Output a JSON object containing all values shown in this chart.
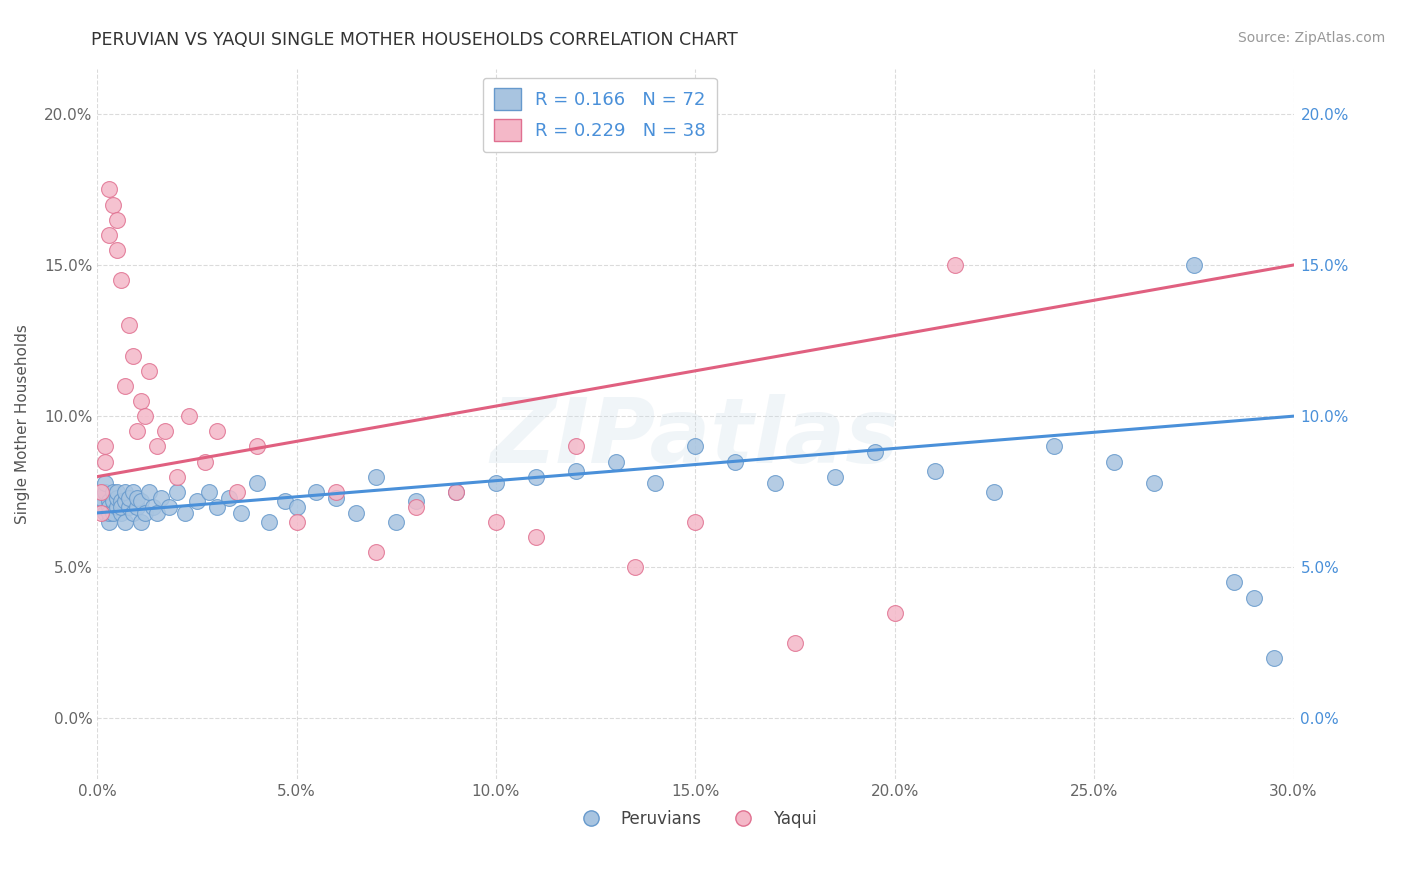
{
  "title": "PERUVIAN VS YAQUI SINGLE MOTHER HOUSEHOLDS CORRELATION CHART",
  "source_text": "Source: ZipAtlas.com",
  "ylabel": "Single Mother Households",
  "xlim": [
    0.0,
    0.3
  ],
  "ylim": [
    -0.02,
    0.215
  ],
  "xticks": [
    0.0,
    0.05,
    0.1,
    0.15,
    0.2,
    0.25,
    0.3
  ],
  "xtick_labels": [
    "0.0%",
    "5.0%",
    "10.0%",
    "15.0%",
    "20.0%",
    "25.0%",
    "30.0%"
  ],
  "yticks": [
    0.0,
    0.05,
    0.1,
    0.15,
    0.2
  ],
  "ytick_labels": [
    "0.0%",
    "5.0%",
    "10.0%",
    "15.0%",
    "20.0%"
  ],
  "peruvian_color": "#a8c4e0",
  "peruvian_edge": "#6699cc",
  "yaqui_color": "#f4b8c8",
  "yaqui_edge": "#e07090",
  "line_peruvian": "#4a90d9",
  "line_yaqui": "#e06080",
  "R_peruvian": 0.166,
  "N_peruvian": 72,
  "R_yaqui": 0.229,
  "N_yaqui": 38,
  "legend_label_peruvian": "Peruvians",
  "legend_label_yaqui": "Yaqui",
  "watermark": "ZIPatlas",
  "background_color": "#ffffff",
  "grid_color": "#cccccc",
  "peruvian_x": [
    0.001,
    0.001,
    0.002,
    0.002,
    0.002,
    0.003,
    0.003,
    0.003,
    0.003,
    0.004,
    0.004,
    0.004,
    0.005,
    0.005,
    0.005,
    0.006,
    0.006,
    0.006,
    0.007,
    0.007,
    0.007,
    0.008,
    0.008,
    0.009,
    0.009,
    0.01,
    0.01,
    0.011,
    0.011,
    0.012,
    0.013,
    0.014,
    0.015,
    0.016,
    0.018,
    0.02,
    0.022,
    0.025,
    0.028,
    0.03,
    0.033,
    0.036,
    0.04,
    0.043,
    0.047,
    0.05,
    0.055,
    0.06,
    0.065,
    0.07,
    0.075,
    0.08,
    0.09,
    0.1,
    0.11,
    0.12,
    0.13,
    0.14,
    0.15,
    0.16,
    0.17,
    0.185,
    0.195,
    0.21,
    0.225,
    0.24,
    0.255,
    0.265,
    0.275,
    0.285,
    0.29,
    0.295
  ],
  "peruvian_y": [
    0.07,
    0.073,
    0.068,
    0.075,
    0.078,
    0.065,
    0.072,
    0.07,
    0.068,
    0.075,
    0.072,
    0.068,
    0.07,
    0.073,
    0.075,
    0.068,
    0.072,
    0.07,
    0.065,
    0.072,
    0.075,
    0.07,
    0.073,
    0.068,
    0.075,
    0.07,
    0.073,
    0.065,
    0.072,
    0.068,
    0.075,
    0.07,
    0.068,
    0.073,
    0.07,
    0.075,
    0.068,
    0.072,
    0.075,
    0.07,
    0.073,
    0.068,
    0.078,
    0.065,
    0.072,
    0.07,
    0.075,
    0.073,
    0.068,
    0.08,
    0.065,
    0.072,
    0.075,
    0.078,
    0.08,
    0.082,
    0.085,
    0.078,
    0.09,
    0.085,
    0.078,
    0.08,
    0.088,
    0.082,
    0.075,
    0.09,
    0.085,
    0.078,
    0.15,
    0.045,
    0.04,
    0.02
  ],
  "yaqui_x": [
    0.001,
    0.001,
    0.002,
    0.002,
    0.003,
    0.003,
    0.004,
    0.005,
    0.005,
    0.006,
    0.007,
    0.008,
    0.009,
    0.01,
    0.011,
    0.012,
    0.013,
    0.015,
    0.017,
    0.02,
    0.023,
    0.027,
    0.03,
    0.035,
    0.04,
    0.05,
    0.06,
    0.07,
    0.08,
    0.09,
    0.1,
    0.11,
    0.12,
    0.135,
    0.15,
    0.175,
    0.2,
    0.215
  ],
  "yaqui_y": [
    0.075,
    0.068,
    0.09,
    0.085,
    0.16,
    0.175,
    0.17,
    0.155,
    0.165,
    0.145,
    0.11,
    0.13,
    0.12,
    0.095,
    0.105,
    0.1,
    0.115,
    0.09,
    0.095,
    0.08,
    0.1,
    0.085,
    0.095,
    0.075,
    0.09,
    0.065,
    0.075,
    0.055,
    0.07,
    0.075,
    0.065,
    0.06,
    0.09,
    0.05,
    0.065,
    0.025,
    0.035,
    0.15
  ],
  "blue_line_x0": 0.0,
  "blue_line_y0": 0.068,
  "blue_line_x1": 0.3,
  "blue_line_y1": 0.1,
  "pink_line_x0": 0.0,
  "pink_line_y0": 0.08,
  "pink_line_x1": 0.3,
  "pink_line_y1": 0.15
}
